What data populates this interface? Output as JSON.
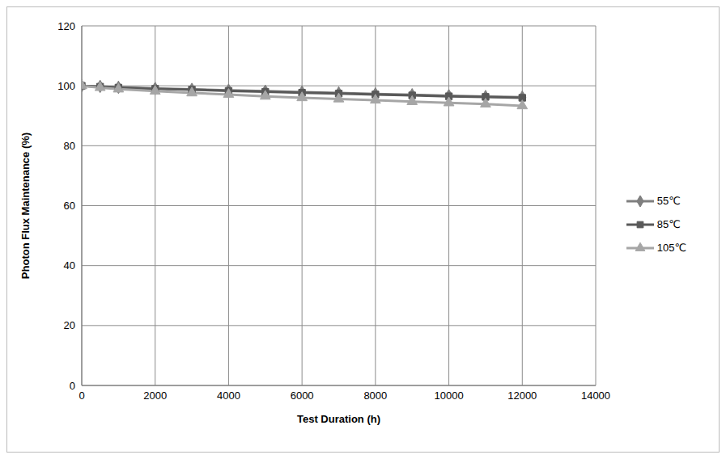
{
  "chart_data": {
    "type": "line",
    "x_label": "Test Duration (h)",
    "y_label": "Photon Flux Maintenance (%)",
    "x": [
      0,
      500,
      1000,
      2000,
      3000,
      4000,
      5000,
      6000,
      7000,
      8000,
      9000,
      10000,
      11000,
      12000
    ],
    "series": [
      {
        "name": "55℃",
        "color": "#7f7f7f",
        "marker": "diamond",
        "values": [
          100,
          99.8,
          99.5,
          99.1,
          98.8,
          98.5,
          98.2,
          97.9,
          97.6,
          97.3,
          97.0,
          96.7,
          96.4,
          96.2
        ]
      },
      {
        "name": "85℃",
        "color": "#595959",
        "marker": "square",
        "values": [
          100,
          99.7,
          99.4,
          99.0,
          98.7,
          98.3,
          98.0,
          97.7,
          97.4,
          97.1,
          96.8,
          96.5,
          96.3,
          96.0
        ]
      },
      {
        "name": "105℃",
        "color": "#a6a6a6",
        "marker": "triangle",
        "values": [
          100,
          99.4,
          98.9,
          98.2,
          97.6,
          97.1,
          96.5,
          96.0,
          95.6,
          95.2,
          94.7,
          94.3,
          93.9,
          93.3
        ]
      }
    ],
    "xlim": [
      0,
      14000
    ],
    "xticks": [
      0,
      2000,
      4000,
      6000,
      8000,
      10000,
      12000,
      14000
    ],
    "ylim": [
      0,
      120
    ],
    "yticks": [
      0,
      20,
      40,
      60,
      80,
      100,
      120
    ],
    "grid": true,
    "legend": "right"
  }
}
